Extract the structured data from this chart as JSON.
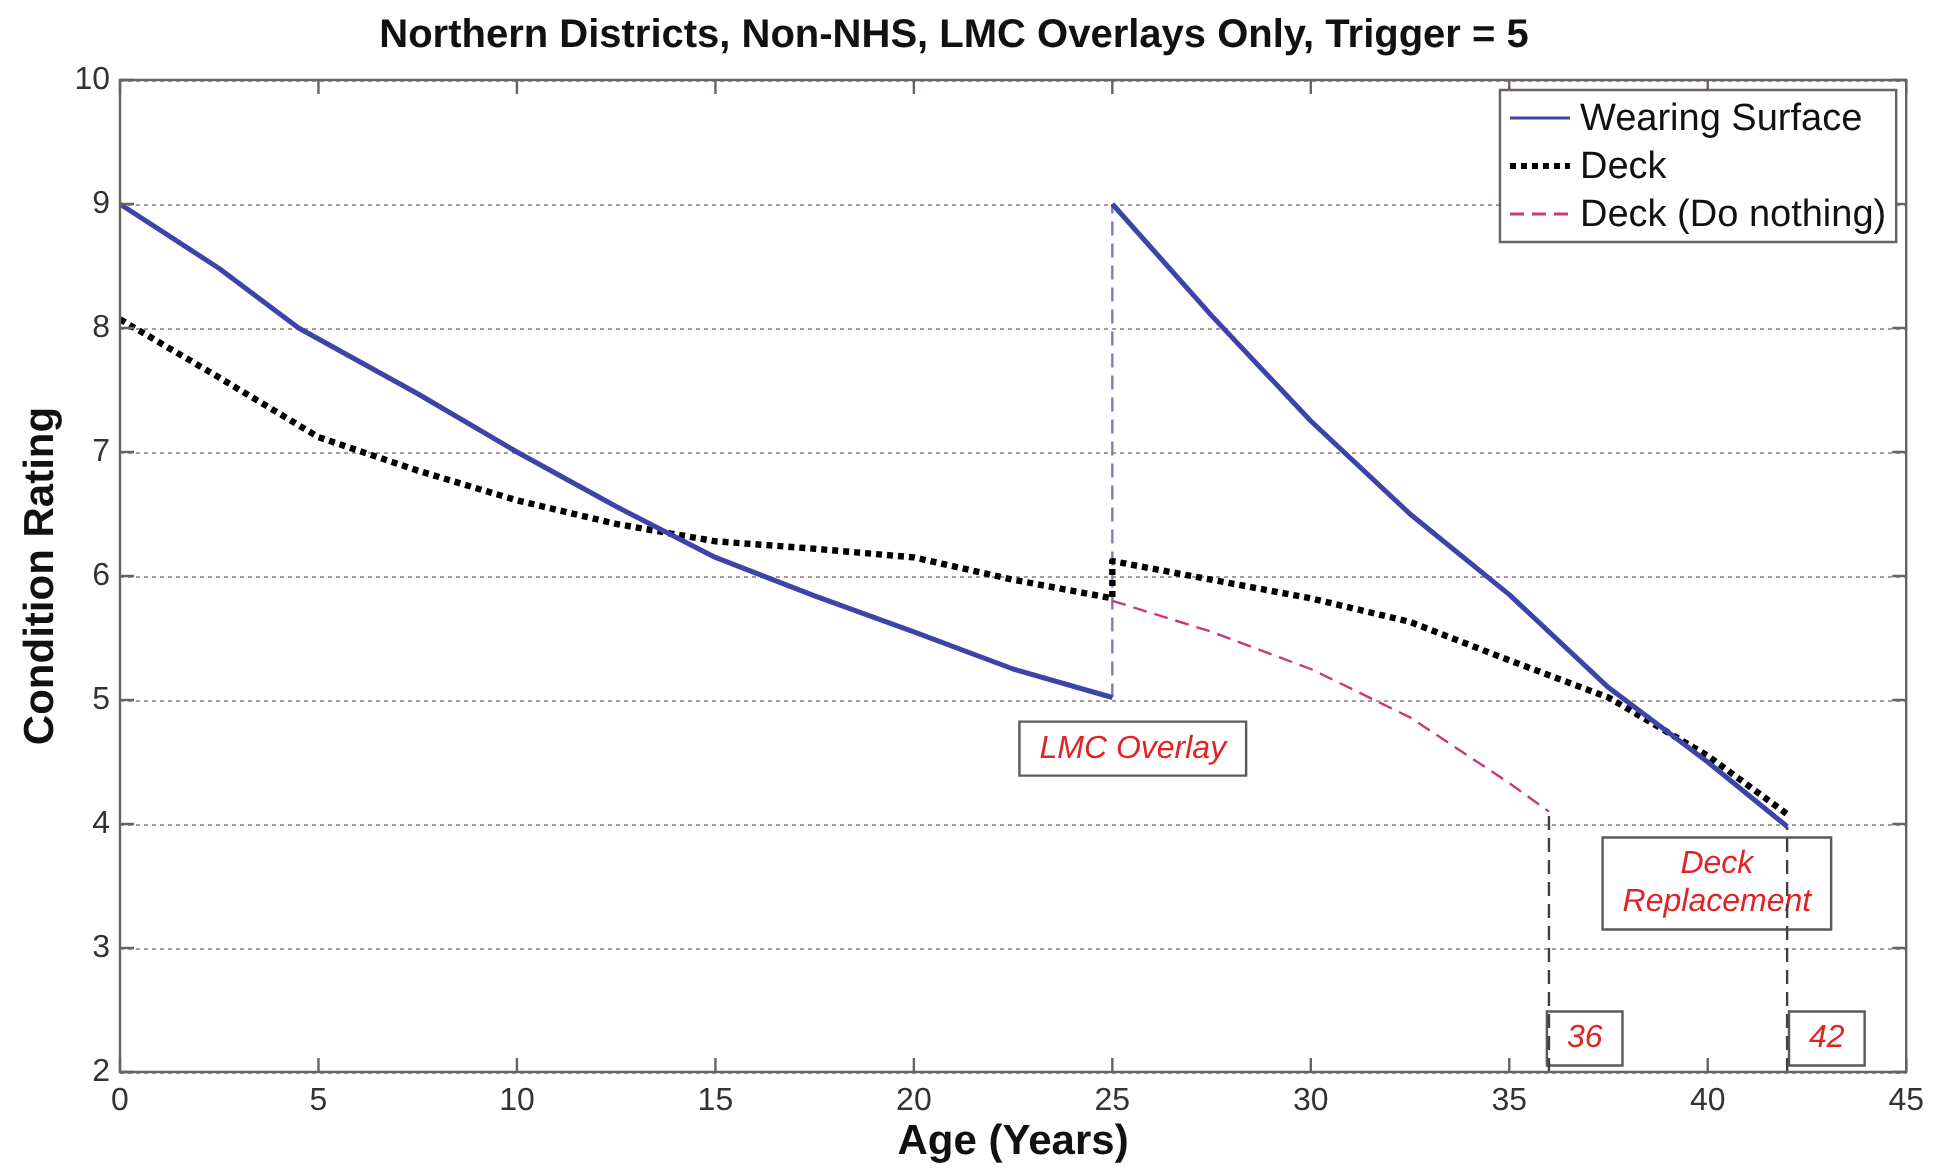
{
  "chart_data": {
    "type": "line",
    "title": "Northern Districts, Non-NHS, LMC Overlays Only, Trigger = 5",
    "xlabel": "Age (Years)",
    "ylabel": "Condition Rating",
    "xlim": [
      0,
      45
    ],
    "xticks": [
      0,
      5,
      10,
      15,
      20,
      25,
      30,
      35,
      40,
      45
    ],
    "ylim": [
      2,
      10
    ],
    "yticks": [
      2,
      3,
      4,
      5,
      6,
      7,
      8,
      9,
      10
    ],
    "grid": "y",
    "legend": "top right",
    "series": [
      {
        "name": "Wearing Surface",
        "color": "#3c44a8",
        "line_style": "solid",
        "x": [
          0,
          2.5,
          4.5,
          7.5,
          10,
          12.5,
          15,
          17.5,
          20,
          22.5,
          25
        ],
        "values": [
          9,
          8.48,
          8.0,
          7.47,
          7.0,
          6.56,
          6.15,
          5.84,
          5.55,
          5.25,
          5.02
        ]
      },
      {
        "color": "#3c44a8",
        "line_style": "solid",
        "x": [
          25,
          27.5,
          30,
          32.5,
          35,
          37.5,
          40,
          42
        ],
        "values": [
          9,
          8.1,
          7.25,
          6.5,
          5.85,
          5.1,
          4.5,
          3.98
        ]
      },
      {
        "name": "Deck",
        "color": "#000000",
        "line_style": "dotted",
        "x": [
          0,
          2.5,
          5,
          7.5,
          10,
          12.5,
          15,
          17.5,
          20,
          22.5,
          25,
          25,
          27.5,
          30,
          32.5,
          35,
          37.5,
          40,
          42
        ],
        "values": [
          8.07,
          7.6,
          7.12,
          6.85,
          6.61,
          6.42,
          6.28,
          6.22,
          6.15,
          5.97,
          5.82,
          6.12,
          5.97,
          5.82,
          5.63,
          5.32,
          5.02,
          4.55,
          4.08
        ]
      },
      {
        "name": "Deck (Do nothing)",
        "color": "#c8387c",
        "line_style": "dashed",
        "x": [
          25,
          27.5,
          30,
          32.5,
          35,
          36
        ],
        "values": [
          5.8,
          5.55,
          5.25,
          4.86,
          4.33,
          4.1
        ]
      },
      {
        "color": "#8c74c8",
        "line_style": "dashed",
        "x": [
          25,
          25
        ],
        "values": [
          5.02,
          9
        ]
      },
      {
        "color": "#404040",
        "line_style": "dashed",
        "x": [
          36,
          36
        ],
        "values": [
          2,
          4.1
        ]
      },
      {
        "color": "#404040",
        "line_style": "dashed",
        "x": [
          42,
          42
        ],
        "values": [
          2,
          3.98
        ]
      }
    ],
    "annotations": [
      "LMC Overlay",
      "Deck Replacement",
      {
        "text": "36",
        "x": 36.9,
        "y": 2.27
      },
      {
        "text": "42",
        "x": 43,
        "y": 2.27
      }
    ]
  }
}
